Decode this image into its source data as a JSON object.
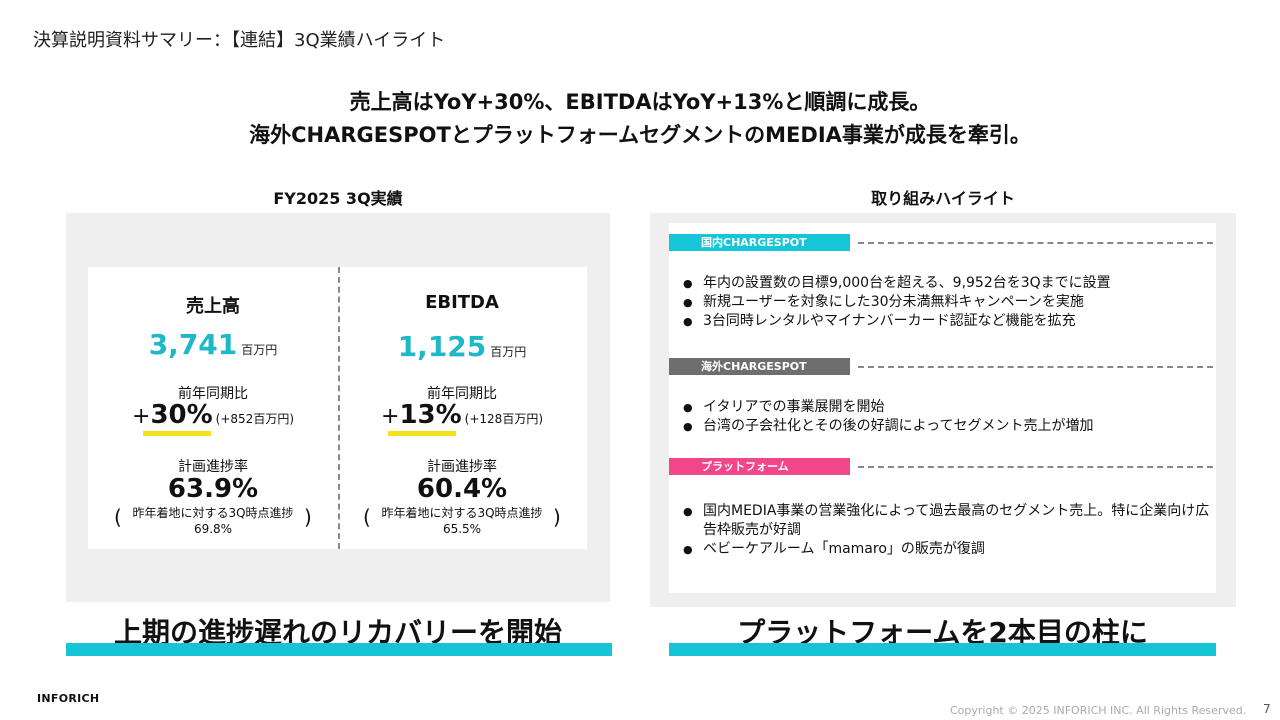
{
  "slide_title": "決算説明資料サマリー：【連結】3Q業績ハイライト",
  "headline": {
    "line1": "売上高はYoY+30%、EBITDAはYoY+13%と順調に成長。",
    "line2": "海外CHARGESPOTとプラットフォームセグメントのMEDIA事業が成長を牽引。"
  },
  "left_panel": {
    "label": "FY2025 3Q実績",
    "columns": [
      {
        "title": "売上高",
        "value": "3,741",
        "unit": "百万円",
        "yoy_label": "前年同期比",
        "yoy_plus": "+",
        "yoy_value": "30%",
        "yoy_sub": "(+852百万円)",
        "progress_label": "計画進捗率",
        "progress_value": "63.9%",
        "note_line1": "昨年着地に対する3Q時点進捗",
        "note_line2": "69.8%"
      },
      {
        "title": "EBITDA",
        "value": "1,125",
        "unit": "百万円",
        "yoy_label": "前年同期比",
        "yoy_plus": "+",
        "yoy_value": "13%",
        "yoy_sub": "(+128百万円)",
        "progress_label": "計画進捗率",
        "progress_value": "60.4%",
        "note_line1": "昨年着地に対する3Q時点進捗",
        "note_line2": "65.5%"
      }
    ],
    "caption": "上期の進捗遅れのリカバリーを開始"
  },
  "right_panel": {
    "label": "取り組みハイライト",
    "sections": [
      {
        "tag": "国内CHARGESPOT",
        "color": "#17c6d6",
        "bullets": [
          "年内の設置数の目標9,000台を超える、9,952台を3Qまでに設置",
          "新規ユーザーを対象にした30分未満無料キャンペーンを実施",
          "3台同時レンタルやマイナンバーカード認証など機能を拡充"
        ]
      },
      {
        "tag": "海外CHARGESPOT",
        "color": "#6e6e6e",
        "bullets": [
          "イタリアでの事業展開を開始",
          "台湾の子会社化とその後の好調によってセグメント売上が増加"
        ]
      },
      {
        "tag": "プラットフォーム",
        "color": "#f2468c",
        "bullets": [
          "国内MEDIA事業の営業強化によって過去最高のセグメント売上。特に企業向け広告枠販売が好調",
          "ベビーケアルーム「mamaro」の販売が復調"
        ]
      }
    ],
    "caption": "プラットフォームを2本目の柱に"
  },
  "footer": {
    "logo": "INFORICH",
    "copyright": "Copyright © 2025 INFORICH INC. All Rights Reserved.",
    "page": "7"
  }
}
